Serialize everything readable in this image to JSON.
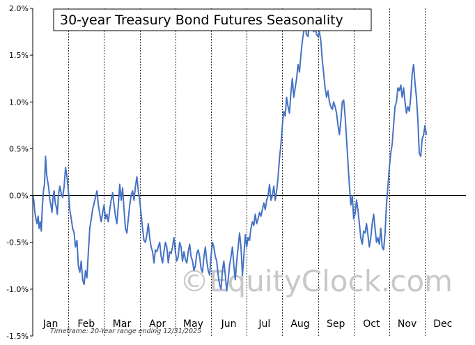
{
  "chart_data": {
    "type": "line",
    "title": "30-year Treasury Bond Futures Seasonality",
    "xlabel": "",
    "ylabel": "",
    "ylim": [
      -1.5,
      2.0
    ],
    "y_ticks": [
      "2.0%",
      "1.5%",
      "1.0%",
      "0.5%",
      "0.0%",
      "-0.5%",
      "-1.0%",
      "-1.5%"
    ],
    "categories": [
      "Jan",
      "Feb",
      "Mar",
      "Apr",
      "May",
      "Jun",
      "Jul",
      "Aug",
      "Sep",
      "Oct",
      "Nov",
      "Dec"
    ],
    "grid": "vertical dashed month separators, solid zero line",
    "legend": "none",
    "line_color": "#4472c4",
    "series": [
      {
        "values": [
          [
            0.0,
            0.0
          ],
          [
            0.03,
            -0.05
          ],
          [
            0.06,
            -0.18
          ],
          [
            0.09,
            -0.25
          ],
          [
            0.12,
            -0.3
          ],
          [
            0.15,
            -0.22
          ],
          [
            0.18,
            -0.35
          ],
          [
            0.21,
            -0.28
          ],
          [
            0.24,
            -0.38
          ],
          [
            0.27,
            -0.12
          ],
          [
            0.3,
            0.05
          ],
          [
            0.33,
            0.12
          ],
          [
            0.36,
            0.42
          ],
          [
            0.39,
            0.22
          ],
          [
            0.42,
            0.15
          ],
          [
            0.45,
            0.08
          ],
          [
            0.48,
            -0.05
          ],
          [
            0.51,
            -0.1
          ],
          [
            0.54,
            -0.18
          ],
          [
            0.57,
            -0.02
          ],
          [
            0.6,
            0.05
          ],
          [
            0.63,
            -0.08
          ],
          [
            0.66,
            -0.12
          ],
          [
            0.69,
            -0.2
          ],
          [
            0.72,
            0.0
          ],
          [
            0.76,
            0.1
          ],
          [
            0.8,
            0.02
          ],
          [
            0.84,
            -0.02
          ],
          [
            0.88,
            0.1
          ],
          [
            0.92,
            0.3
          ],
          [
            0.96,
            0.2
          ],
          [
            1.0,
            0.05
          ],
          [
            1.04,
            -0.15
          ],
          [
            1.08,
            -0.25
          ],
          [
            1.12,
            -0.35
          ],
          [
            1.16,
            -0.4
          ],
          [
            1.2,
            -0.55
          ],
          [
            1.24,
            -0.48
          ],
          [
            1.28,
            -0.75
          ],
          [
            1.32,
            -0.82
          ],
          [
            1.36,
            -0.7
          ],
          [
            1.4,
            -0.9
          ],
          [
            1.44,
            -0.95
          ],
          [
            1.48,
            -0.8
          ],
          [
            1.52,
            -0.88
          ],
          [
            1.56,
            -0.6
          ],
          [
            1.6,
            -0.35
          ],
          [
            1.64,
            -0.25
          ],
          [
            1.68,
            -0.15
          ],
          [
            1.72,
            -0.08
          ],
          [
            1.76,
            -0.02
          ],
          [
            1.8,
            0.05
          ],
          [
            1.84,
            -0.1
          ],
          [
            1.88,
            -0.2
          ],
          [
            1.92,
            -0.28
          ],
          [
            1.96,
            -0.18
          ],
          [
            2.0,
            -0.1
          ],
          [
            2.04,
            -0.25
          ],
          [
            2.08,
            -0.2
          ],
          [
            2.12,
            -0.28
          ],
          [
            2.16,
            -0.15
          ],
          [
            2.2,
            -0.05
          ],
          [
            2.24,
            0.03
          ],
          [
            2.28,
            -0.1
          ],
          [
            2.32,
            -0.22
          ],
          [
            2.36,
            -0.3
          ],
          [
            2.4,
            -0.1
          ],
          [
            2.44,
            0.12
          ],
          [
            2.48,
            -0.05
          ],
          [
            2.52,
            0.08
          ],
          [
            2.56,
            -0.15
          ],
          [
            2.6,
            -0.35
          ],
          [
            2.64,
            -0.4
          ],
          [
            2.68,
            -0.25
          ],
          [
            2.72,
            -0.1
          ],
          [
            2.76,
            0.0
          ],
          [
            2.8,
            0.05
          ],
          [
            2.84,
            -0.05
          ],
          [
            2.88,
            0.1
          ],
          [
            2.92,
            0.2
          ],
          [
            2.96,
            0.05
          ],
          [
            3.0,
            -0.05
          ],
          [
            3.04,
            -0.2
          ],
          [
            3.08,
            -0.35
          ],
          [
            3.12,
            -0.48
          ],
          [
            3.16,
            -0.5
          ],
          [
            3.2,
            -0.42
          ],
          [
            3.24,
            -0.3
          ],
          [
            3.28,
            -0.45
          ],
          [
            3.32,
            -0.55
          ],
          [
            3.36,
            -0.6
          ],
          [
            3.4,
            -0.72
          ],
          [
            3.44,
            -0.58
          ],
          [
            3.48,
            -0.6
          ],
          [
            3.52,
            -0.55
          ],
          [
            3.56,
            -0.5
          ],
          [
            3.6,
            -0.65
          ],
          [
            3.64,
            -0.72
          ],
          [
            3.68,
            -0.6
          ],
          [
            3.72,
            -0.5
          ],
          [
            3.76,
            -0.55
          ],
          [
            3.8,
            -0.72
          ],
          [
            3.84,
            -0.6
          ],
          [
            3.88,
            -0.62
          ],
          [
            3.92,
            -0.55
          ],
          [
            3.96,
            -0.45
          ],
          [
            4.0,
            -0.6
          ],
          [
            4.04,
            -0.7
          ],
          [
            4.08,
            -0.65
          ],
          [
            4.12,
            -0.5
          ],
          [
            4.16,
            -0.55
          ],
          [
            4.2,
            -0.7
          ],
          [
            4.24,
            -0.6
          ],
          [
            4.28,
            -0.68
          ],
          [
            4.32,
            -0.72
          ],
          [
            4.36,
            -0.6
          ],
          [
            4.4,
            -0.52
          ],
          [
            4.44,
            -0.65
          ],
          [
            4.48,
            -0.7
          ],
          [
            4.52,
            -0.8
          ],
          [
            4.56,
            -0.75
          ],
          [
            4.6,
            -0.62
          ],
          [
            4.64,
            -0.58
          ],
          [
            4.68,
            -0.65
          ],
          [
            4.72,
            -0.78
          ],
          [
            4.76,
            -0.82
          ],
          [
            4.8,
            -0.65
          ],
          [
            4.84,
            -0.55
          ],
          [
            4.88,
            -0.7
          ],
          [
            4.92,
            -0.8
          ],
          [
            4.96,
            -0.85
          ],
          [
            5.0,
            -0.65
          ],
          [
            5.04,
            -0.5
          ],
          [
            5.08,
            -0.55
          ],
          [
            5.12,
            -0.65
          ],
          [
            5.16,
            -0.7
          ],
          [
            5.2,
            -0.85
          ],
          [
            5.24,
            -0.95
          ],
          [
            5.28,
            -1.0
          ],
          [
            5.32,
            -0.8
          ],
          [
            5.36,
            -0.7
          ],
          [
            5.4,
            -0.85
          ],
          [
            5.44,
            -1.02
          ],
          [
            5.48,
            -0.9
          ],
          [
            5.52,
            -0.75
          ],
          [
            5.56,
            -0.65
          ],
          [
            5.6,
            -0.55
          ],
          [
            5.64,
            -0.75
          ],
          [
            5.68,
            -0.9
          ],
          [
            5.72,
            -0.7
          ],
          [
            5.76,
            -0.55
          ],
          [
            5.8,
            -0.4
          ],
          [
            5.84,
            -0.55
          ],
          [
            5.88,
            -0.85
          ],
          [
            5.92,
            -0.65
          ],
          [
            5.96,
            -0.42
          ],
          [
            6.0,
            -0.55
          ],
          [
            6.04,
            -0.45
          ],
          [
            6.08,
            -0.48
          ],
          [
            6.12,
            -0.35
          ],
          [
            6.16,
            -0.28
          ],
          [
            6.2,
            -0.32
          ],
          [
            6.24,
            -0.2
          ],
          [
            6.28,
            -0.3
          ],
          [
            6.32,
            -0.25
          ],
          [
            6.36,
            -0.18
          ],
          [
            6.4,
            -0.22
          ],
          [
            6.44,
            -0.15
          ],
          [
            6.48,
            -0.08
          ],
          [
            6.52,
            -0.15
          ],
          [
            6.56,
            -0.05
          ],
          [
            6.6,
            0.0
          ],
          [
            6.64,
            0.12
          ],
          [
            6.68,
            -0.05
          ],
          [
            6.72,
            0.0
          ],
          [
            6.76,
            0.1
          ],
          [
            6.8,
            -0.05
          ],
          [
            6.84,
            0.05
          ],
          [
            6.88,
            0.2
          ],
          [
            6.92,
            0.4
          ],
          [
            6.96,
            0.55
          ],
          [
            7.0,
            0.75
          ],
          [
            7.04,
            0.9
          ],
          [
            7.08,
            0.85
          ],
          [
            7.12,
            1.05
          ],
          [
            7.16,
            0.95
          ],
          [
            7.2,
            0.88
          ],
          [
            7.24,
            1.1
          ],
          [
            7.28,
            1.25
          ],
          [
            7.32,
            1.05
          ],
          [
            7.36,
            1.15
          ],
          [
            7.4,
            1.25
          ],
          [
            7.44,
            1.4
          ],
          [
            7.48,
            1.32
          ],
          [
            7.52,
            1.5
          ],
          [
            7.56,
            1.65
          ],
          [
            7.6,
            1.75
          ],
          [
            7.64,
            1.8
          ],
          [
            7.68,
            1.72
          ],
          [
            7.72,
            1.7
          ],
          [
            7.76,
            1.88
          ],
          [
            7.8,
            1.82
          ],
          [
            7.84,
            1.85
          ],
          [
            7.88,
            1.75
          ],
          [
            7.92,
            1.8
          ],
          [
            7.96,
            1.72
          ],
          [
            8.0,
            1.7
          ],
          [
            8.04,
            1.75
          ],
          [
            8.08,
            1.65
          ],
          [
            8.12,
            1.45
          ],
          [
            8.16,
            1.3
          ],
          [
            8.2,
            1.15
          ],
          [
            8.24,
            1.05
          ],
          [
            8.28,
            1.12
          ],
          [
            8.32,
            1.0
          ],
          [
            8.36,
            0.95
          ],
          [
            8.4,
            0.92
          ],
          [
            8.44,
            1.0
          ],
          [
            8.48,
            0.95
          ],
          [
            8.52,
            0.88
          ],
          [
            8.56,
            0.75
          ],
          [
            8.6,
            0.65
          ],
          [
            8.64,
            0.8
          ],
          [
            8.68,
            1.0
          ],
          [
            8.72,
            1.02
          ],
          [
            8.76,
            0.85
          ],
          [
            8.8,
            0.6
          ],
          [
            8.84,
            0.35
          ],
          [
            8.88,
            0.1
          ],
          [
            8.92,
            -0.1
          ],
          [
            8.96,
            0.0
          ],
          [
            9.0,
            -0.25
          ],
          [
            9.04,
            -0.2
          ],
          [
            9.08,
            -0.05
          ],
          [
            9.12,
            -0.15
          ],
          [
            9.16,
            -0.3
          ],
          [
            9.2,
            -0.45
          ],
          [
            9.24,
            -0.52
          ],
          [
            9.28,
            -0.38
          ],
          [
            9.32,
            -0.4
          ],
          [
            9.36,
            -0.3
          ],
          [
            9.4,
            -0.42
          ],
          [
            9.44,
            -0.55
          ],
          [
            9.48,
            -0.45
          ],
          [
            9.52,
            -0.3
          ],
          [
            9.56,
            -0.2
          ],
          [
            9.6,
            -0.35
          ],
          [
            9.64,
            -0.5
          ],
          [
            9.68,
            -0.45
          ],
          [
            9.72,
            -0.52
          ],
          [
            9.76,
            -0.35
          ],
          [
            9.8,
            -0.55
          ],
          [
            9.84,
            -0.58
          ],
          [
            9.88,
            -0.4
          ],
          [
            9.92,
            -0.1
          ],
          [
            9.96,
            0.1
          ],
          [
            10.0,
            0.3
          ],
          [
            10.04,
            0.45
          ],
          [
            10.08,
            0.55
          ],
          [
            10.12,
            0.75
          ],
          [
            10.16,
            0.95
          ],
          [
            10.2,
            1.0
          ],
          [
            10.24,
            1.15
          ],
          [
            10.28,
            1.12
          ],
          [
            10.32,
            1.18
          ],
          [
            10.36,
            1.05
          ],
          [
            10.4,
            1.15
          ],
          [
            10.44,
            1.0
          ],
          [
            10.48,
            0.88
          ],
          [
            10.52,
            0.95
          ],
          [
            10.56,
            0.9
          ],
          [
            10.6,
            1.05
          ],
          [
            10.64,
            1.3
          ],
          [
            10.68,
            1.4
          ],
          [
            10.72,
            1.2
          ],
          [
            10.76,
            1.05
          ],
          [
            10.8,
            0.8
          ],
          [
            10.84,
            0.45
          ],
          [
            10.88,
            0.42
          ],
          [
            10.92,
            0.6
          ],
          [
            10.96,
            0.65
          ],
          [
            11.0,
            0.75
          ],
          [
            11.04,
            0.65
          ]
        ]
      }
    ]
  },
  "footer": {
    "timeframe": "Timeframe: 20-Year range ending 12/31/2025"
  },
  "watermark": {
    "text": "EquityClock.com",
    "symbol": "©"
  }
}
